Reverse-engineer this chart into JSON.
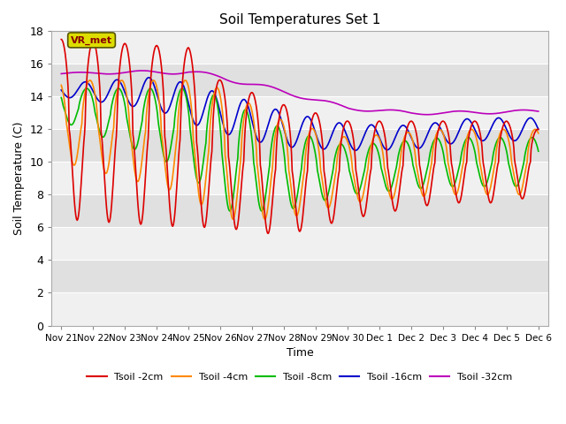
{
  "title": "Soil Temperatures Set 1",
  "xlabel": "Time",
  "ylabel": "Soil Temperature (C)",
  "ylim": [
    0,
    18
  ],
  "yticks": [
    0,
    2,
    4,
    6,
    8,
    10,
    12,
    14,
    16,
    18
  ],
  "x_labels": [
    "Nov 21",
    "Nov 22",
    "Nov 23",
    "Nov 24",
    "Nov 25",
    "Nov 26",
    "Nov 27",
    "Nov 28",
    "Nov 29",
    "Nov 30",
    "Dec 1",
    "Dec 2",
    "Dec 3",
    "Dec 4",
    "Dec 5",
    "Dec 6"
  ],
  "annotation_text": "VR_met",
  "bg_color": "#ffffff",
  "plot_bg_light": "#f0f0f0",
  "plot_bg_dark": "#e0e0e0",
  "line_red": "#dd0000",
  "line_orange": "#ff8800",
  "line_green": "#00bb00",
  "line_blue": "#0000cc",
  "line_purple": "#bb00bb",
  "lw": 1.2
}
